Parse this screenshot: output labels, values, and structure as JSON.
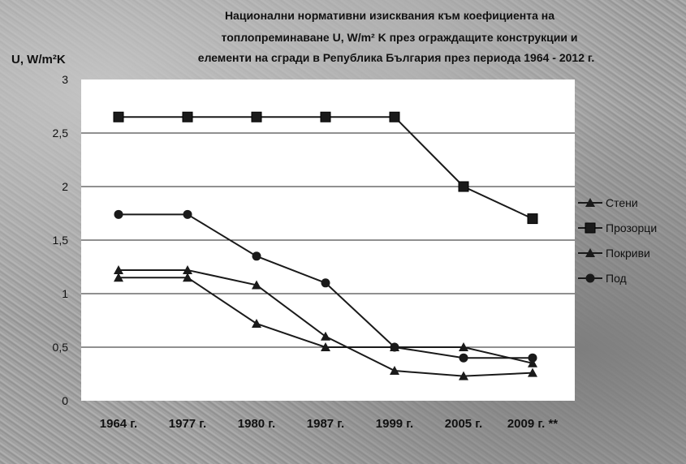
{
  "chart_data": {
    "type": "line",
    "title_lines": [
      "Национални нормативни изисквания към коефициента на",
      "топлопреминаване U, W/m² K през ограждащите конструкции и",
      "елементи на сгради в Република България през периода 1964 - 2012 г."
    ],
    "ylabel": "U, W/m²K",
    "xlabel": "",
    "categories": [
      "1964 г.",
      "1977 г.",
      "1980 г.",
      "1987 г.",
      "1999 г.",
      "2005 г.",
      "2009 г. **"
    ],
    "yticks": [
      "0",
      "0,5",
      "1",
      "1,5",
      "2",
      "2,5",
      "3"
    ],
    "ytick_values": [
      0,
      0.5,
      1,
      1.5,
      2,
      2.5,
      3
    ],
    "ylim": [
      0,
      3
    ],
    "grid": true,
    "legend_position": "right",
    "series": [
      {
        "name": "Стени",
        "marker": "triangle",
        "values": [
          1.22,
          1.22,
          1.08,
          0.6,
          0.28,
          0.23,
          0.26
        ]
      },
      {
        "name": "Прозорци",
        "marker": "square",
        "values": [
          2.65,
          2.65,
          2.65,
          2.65,
          2.65,
          2.0,
          1.7
        ]
      },
      {
        "name": "Покриви",
        "marker": "triangle",
        "values": [
          1.15,
          1.15,
          0.72,
          0.5,
          0.5,
          0.5,
          0.35
        ]
      },
      {
        "name": "Под",
        "marker": "circle",
        "values": [
          1.74,
          1.74,
          1.35,
          1.1,
          0.5,
          0.4,
          0.4
        ]
      }
    ]
  }
}
